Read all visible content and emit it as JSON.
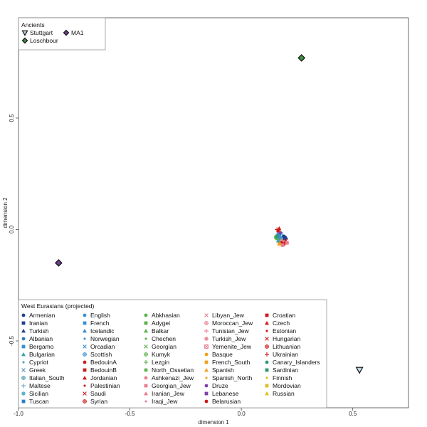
{
  "chart_data": {
    "type": "scatter",
    "xlabel": "dimension 1",
    "ylabel": "dimension 2",
    "xlim": [
      -1.0,
      0.75
    ],
    "ylim": [
      -0.8,
      0.95
    ],
    "xticks": [
      -1.0,
      -0.5,
      0.0,
      0.5
    ],
    "xtick_labels": [
      "-1.0",
      "-0.5",
      "0.0",
      "0.5"
    ],
    "yticks": [
      -0.5,
      0.0,
      0.5
    ],
    "ytick_labels": [
      "-0.5",
      "0.0",
      "0.5"
    ],
    "grid": false,
    "ancients_legend": {
      "title": "Ancients",
      "placement": "top-left",
      "entries": [
        {
          "name": "Stuttgart",
          "marker": "triangle-down",
          "color": "#bcd8e6",
          "stroke": "#111111"
        },
        {
          "name": "MA1",
          "marker": "diamond",
          "color": "#6b3f8e",
          "stroke": "#111111"
        },
        {
          "name": "Loschbour",
          "marker": "diamond",
          "color": "#3e8e3e",
          "stroke": "#111111"
        }
      ]
    },
    "ancients_points": [
      {
        "name": "Stuttgart",
        "x": 0.53,
        "y": -0.63
      },
      {
        "name": "MA1",
        "x": -0.82,
        "y": -0.15
      },
      {
        "name": "Loschbour",
        "x": 0.27,
        "y": 0.77
      }
    ],
    "modern_legend": {
      "title": "West Eurasians (projected)",
      "placement": "bottom-left",
      "columns": [
        [
          {
            "name": "Armenian",
            "marker": "circle",
            "color": "#1f3f8f"
          },
          {
            "name": "Iranian",
            "marker": "square",
            "color": "#1f3f8f"
          },
          {
            "name": "Turkish",
            "marker": "triangle",
            "color": "#1f3f8f"
          },
          {
            "name": "Albanian",
            "marker": "circle",
            "color": "#2f7fbf"
          },
          {
            "name": "Bergamo",
            "marker": "square",
            "color": "#3b8fd0"
          },
          {
            "name": "Bulgarian",
            "marker": "triangle",
            "color": "#3aa0a8"
          },
          {
            "name": "Cypriot",
            "marker": "small-diamond",
            "color": "#4aa0c8"
          },
          {
            "name": "Greek",
            "marker": "x",
            "color": "#5590b8"
          },
          {
            "name": "Italian_South",
            "marker": "circle-plus",
            "color": "#4a9ab0"
          },
          {
            "name": "Maltese",
            "marker": "plus",
            "color": "#6aa0d0"
          },
          {
            "name": "Sicilian",
            "marker": "asterisk",
            "color": "#4aa8c8"
          },
          {
            "name": "Tuscan",
            "marker": "square",
            "color": "#2a7fc8"
          }
        ],
        [
          {
            "name": "English",
            "marker": "circle",
            "color": "#3b8fd0"
          },
          {
            "name": "French",
            "marker": "square",
            "color": "#3b8fd0"
          },
          {
            "name": "Icelandic",
            "marker": "triangle",
            "color": "#3b8fd0"
          },
          {
            "name": "Norwegian",
            "marker": "small-diamond",
            "color": "#3b8fd0"
          },
          {
            "name": "Orcadian",
            "marker": "x",
            "color": "#3b8fd0"
          },
          {
            "name": "Scottish",
            "marker": "circle-plus",
            "color": "#3b8fd0"
          },
          {
            "name": "BedouinA",
            "marker": "circle",
            "color": "#c81e1e"
          },
          {
            "name": "BedouinB",
            "marker": "square",
            "color": "#c81e1e"
          },
          {
            "name": "Jordanian",
            "marker": "triangle",
            "color": "#c81e1e"
          },
          {
            "name": "Palestinian",
            "marker": "small-diamond",
            "color": "#c81e1e"
          },
          {
            "name": "Saudi",
            "marker": "x",
            "color": "#c81e1e"
          },
          {
            "name": "Syrian",
            "marker": "circle-plus",
            "color": "#c81e1e"
          }
        ],
        [
          {
            "name": "Abkhasian",
            "marker": "circle",
            "color": "#5ab04a"
          },
          {
            "name": "Adygei",
            "marker": "square",
            "color": "#5ab04a"
          },
          {
            "name": "Balkar",
            "marker": "triangle",
            "color": "#5ab04a"
          },
          {
            "name": "Chechen",
            "marker": "small-diamond",
            "color": "#5ab04a"
          },
          {
            "name": "Georgian",
            "marker": "x",
            "color": "#5ab04a"
          },
          {
            "name": "Kumyk",
            "marker": "circle-plus",
            "color": "#5ab04a"
          },
          {
            "name": "Lezgin",
            "marker": "plus",
            "color": "#5ab04a"
          },
          {
            "name": "North_Ossetian",
            "marker": "asterisk",
            "color": "#5ab04a"
          },
          {
            "name": "Ashkenazi_Jew",
            "marker": "circle",
            "color": "#e87f8f"
          },
          {
            "name": "Georgian_Jew",
            "marker": "square",
            "color": "#e87f8f"
          },
          {
            "name": "Iranian_Jew",
            "marker": "triangle",
            "color": "#e87f8f"
          },
          {
            "name": "Iraqi_Jew",
            "marker": "small-diamond",
            "color": "#e87f8f"
          }
        ],
        [
          {
            "name": "Libyan_Jew",
            "marker": "x",
            "color": "#e87f8f"
          },
          {
            "name": "Moroccan_Jew",
            "marker": "circle-plus",
            "color": "#e87f8f"
          },
          {
            "name": "Tunisian_Jew",
            "marker": "plus",
            "color": "#e87f8f"
          },
          {
            "name": "Turkish_Jew",
            "marker": "asterisk",
            "color": "#e87f8f"
          },
          {
            "name": "Yemenite_Jew",
            "marker": "square-cross",
            "color": "#e87f8f"
          },
          {
            "name": "Basque",
            "marker": "circle",
            "color": "#f0a020"
          },
          {
            "name": "French_South",
            "marker": "square",
            "color": "#f0a020"
          },
          {
            "name": "Spanish",
            "marker": "triangle",
            "color": "#f0a020"
          },
          {
            "name": "Spanish_North",
            "marker": "small-diamond",
            "color": "#f0a020"
          },
          {
            "name": "Druze",
            "marker": "circle",
            "color": "#7f3fa8"
          },
          {
            "name": "Lebanese",
            "marker": "square",
            "color": "#7f3fa8"
          },
          {
            "name": "Belarusian",
            "marker": "circle",
            "color": "#d01818"
          }
        ],
        [
          {
            "name": "Croatian",
            "marker": "square",
            "color": "#d01818"
          },
          {
            "name": "Czech",
            "marker": "triangle",
            "color": "#d01818"
          },
          {
            "name": "Estonian",
            "marker": "small-diamond",
            "color": "#d01818"
          },
          {
            "name": "Hungarian",
            "marker": "x",
            "color": "#d01818"
          },
          {
            "name": "Lithuanian",
            "marker": "circle-plus",
            "color": "#d01818"
          },
          {
            "name": "Ukrainian",
            "marker": "plus",
            "color": "#d01818"
          },
          {
            "name": "Canary_Islanders",
            "marker": "circle",
            "color": "#2a9a6a"
          },
          {
            "name": "Sardinian",
            "marker": "square",
            "color": "#2a9a6a"
          },
          {
            "name": "Finnish",
            "marker": "small-diamond",
            "color": "#e0c020"
          },
          {
            "name": "Mordovian",
            "marker": "square",
            "color": "#e0c020"
          },
          {
            "name": "Russian",
            "marker": "triangle",
            "color": "#e0c020"
          }
        ]
      ]
    },
    "cluster_points": [
      {
        "x": 0.16,
        "y": 0.0,
        "c": "#d01818",
        "m": "plus"
      },
      {
        "x": 0.165,
        "y": -0.005,
        "c": "#d01818",
        "m": "square"
      },
      {
        "x": 0.17,
        "y": 0.005,
        "c": "#d01818",
        "m": "triangle"
      },
      {
        "x": 0.175,
        "y": -0.01,
        "c": "#e0c020",
        "m": "triangle"
      },
      {
        "x": 0.165,
        "y": -0.02,
        "c": "#3b8fd0",
        "m": "circle"
      },
      {
        "x": 0.17,
        "y": -0.025,
        "c": "#3b8fd0",
        "m": "square"
      },
      {
        "x": 0.175,
        "y": -0.03,
        "c": "#3b8fd0",
        "m": "triangle"
      },
      {
        "x": 0.18,
        "y": -0.02,
        "c": "#3b8fd0",
        "m": "x"
      },
      {
        "x": 0.155,
        "y": -0.035,
        "c": "#5ab04a",
        "m": "square"
      },
      {
        "x": 0.16,
        "y": -0.04,
        "c": "#5ab04a",
        "m": "triangle"
      },
      {
        "x": 0.17,
        "y": -0.045,
        "c": "#5ab04a",
        "m": "circle"
      },
      {
        "x": 0.18,
        "y": -0.04,
        "c": "#5ab04a",
        "m": "plus"
      },
      {
        "x": 0.185,
        "y": -0.05,
        "c": "#e87f8f",
        "m": "square"
      },
      {
        "x": 0.19,
        "y": -0.045,
        "c": "#e87f8f",
        "m": "circle"
      },
      {
        "x": 0.195,
        "y": -0.055,
        "c": "#e87f8f",
        "m": "triangle"
      },
      {
        "x": 0.175,
        "y": -0.055,
        "c": "#e87f8f",
        "m": "x"
      },
      {
        "x": 0.165,
        "y": -0.05,
        "c": "#3aa0a8",
        "m": "triangle"
      },
      {
        "x": 0.185,
        "y": -0.035,
        "c": "#4aa0c8",
        "m": "circle"
      },
      {
        "x": 0.19,
        "y": -0.03,
        "c": "#1f3f8f",
        "m": "circle"
      },
      {
        "x": 0.195,
        "y": -0.04,
        "c": "#1f3f8f",
        "m": "square"
      },
      {
        "x": 0.2,
        "y": -0.035,
        "c": "#1f3f8f",
        "m": "triangle"
      },
      {
        "x": 0.18,
        "y": -0.06,
        "c": "#c81e1e",
        "m": "circle"
      },
      {
        "x": 0.19,
        "y": -0.065,
        "c": "#c81e1e",
        "m": "square"
      },
      {
        "x": 0.185,
        "y": -0.07,
        "c": "#e87f8f",
        "m": "square"
      },
      {
        "x": 0.17,
        "y": -0.065,
        "c": "#f0a020",
        "m": "square"
      },
      {
        "x": 0.175,
        "y": -0.015,
        "c": "#7f3fa8",
        "m": "circle"
      },
      {
        "x": 0.16,
        "y": -0.03,
        "c": "#2a9a6a",
        "m": "square"
      },
      {
        "x": 0.2,
        "y": -0.05,
        "c": "#d01818",
        "m": "x"
      },
      {
        "x": 0.205,
        "y": -0.06,
        "c": "#e87f8f",
        "m": "square"
      },
      {
        "x": 0.17,
        "y": -0.035,
        "c": "#3b8fd0",
        "m": "circle-plus"
      }
    ]
  }
}
